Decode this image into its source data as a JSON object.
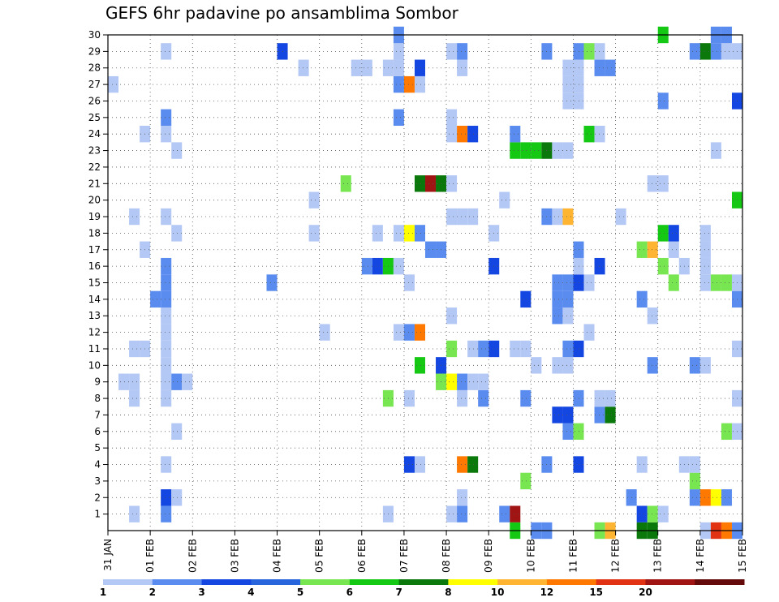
{
  "chart_data": {
    "type": "heatmap",
    "title": "GEFS 6hr padavine po ansamblima Sombor",
    "x_tick_labels": [
      "31 JAN",
      "01 FEB",
      "02 FEB",
      "03 FEB",
      "04 FEB",
      "05 FEB",
      "06 FEB",
      "07 FEB",
      "08 FEB",
      "09 FEB",
      "10 FEB",
      "11 FEB",
      "12 FEB",
      "13 FEB",
      "14 FEB",
      "15 FEB"
    ],
    "x_range_days": [
      0,
      15
    ],
    "y_tick_labels": [
      "1",
      "2",
      "3",
      "4",
      "5",
      "6",
      "7",
      "8",
      "9",
      "10",
      "11",
      "12",
      "13",
      "14",
      "15",
      "16",
      "17",
      "18",
      "19",
      "20",
      "21",
      "22",
      "23",
      "24",
      "25",
      "26",
      "27",
      "28",
      "29",
      "30"
    ],
    "y_range_members": [
      0,
      30
    ],
    "grid": "dotted",
    "color_scale": {
      "levels": [
        "1",
        "2",
        "3",
        "4",
        "5",
        "6",
        "7",
        "8",
        "10",
        "12",
        "15",
        "20"
      ],
      "colors": [
        "#b4c8f5",
        "#5a8cf0",
        "#1446e1",
        "#2864dc",
        "#78e650",
        "#14c814",
        "#0a780a",
        "#ffff00",
        "#ffb432",
        "#ff7800",
        "#e13214",
        "#a01414",
        "#640a0a"
      ]
    },
    "cells": [
      {
        "d": 0.125,
        "m": 27,
        "c": 1
      },
      {
        "d": 0.375,
        "m": 9,
        "c": 1
      },
      {
        "d": 0.625,
        "m": 1,
        "c": 1
      },
      {
        "d": 0.625,
        "m": 8,
        "c": 1
      },
      {
        "d": 0.625,
        "m": 9,
        "c": 1
      },
      {
        "d": 0.625,
        "m": 11,
        "c": 1
      },
      {
        "d": 0.625,
        "m": 19,
        "c": 1
      },
      {
        "d": 0.875,
        "m": 11,
        "c": 1
      },
      {
        "d": 0.875,
        "m": 17,
        "c": 1
      },
      {
        "d": 0.875,
        "m": 24,
        "c": 1
      },
      {
        "d": 1.125,
        "m": 14,
        "c": 2
      },
      {
        "d": 1.375,
        "m": 1,
        "c": 2
      },
      {
        "d": 1.375,
        "m": 2,
        "c": 3
      },
      {
        "d": 1.375,
        "m": 4,
        "c": 1
      },
      {
        "d": 1.375,
        "m": 8,
        "c": 1
      },
      {
        "d": 1.375,
        "m": 9,
        "c": 1
      },
      {
        "d": 1.375,
        "m": 10,
        "c": 1
      },
      {
        "d": 1.375,
        "m": 11,
        "c": 1
      },
      {
        "d": 1.375,
        "m": 12,
        "c": 1
      },
      {
        "d": 1.375,
        "m": 13,
        "c": 1
      },
      {
        "d": 1.375,
        "m": 14,
        "c": 2
      },
      {
        "d": 1.375,
        "m": 15,
        "c": 2
      },
      {
        "d": 1.375,
        "m": 16,
        "c": 2
      },
      {
        "d": 1.375,
        "m": 19,
        "c": 1
      },
      {
        "d": 1.375,
        "m": 24,
        "c": 1
      },
      {
        "d": 1.375,
        "m": 25,
        "c": 2
      },
      {
        "d": 1.375,
        "m": 29,
        "c": 1
      },
      {
        "d": 1.625,
        "m": 2,
        "c": 1
      },
      {
        "d": 1.625,
        "m": 6,
        "c": 1
      },
      {
        "d": 1.625,
        "m": 9,
        "c": 2
      },
      {
        "d": 1.625,
        "m": 18,
        "c": 1
      },
      {
        "d": 1.625,
        "m": 23,
        "c": 1
      },
      {
        "d": 1.875,
        "m": 9,
        "c": 1
      },
      {
        "d": 3.875,
        "m": 15,
        "c": 2
      },
      {
        "d": 4.125,
        "m": 29,
        "c": 3
      },
      {
        "d": 4.625,
        "m": 28,
        "c": 1
      },
      {
        "d": 4.875,
        "m": 18,
        "c": 1
      },
      {
        "d": 4.875,
        "m": 20,
        "c": 1
      },
      {
        "d": 5.125,
        "m": 12,
        "c": 1
      },
      {
        "d": 5.625,
        "m": 21,
        "c": 5
      },
      {
        "d": 5.875,
        "m": 28,
        "c": 1
      },
      {
        "d": 6.125,
        "m": 28,
        "c": 1
      },
      {
        "d": 6.125,
        "m": 16,
        "c": 2
      },
      {
        "d": 6.375,
        "m": 16,
        "c": 3
      },
      {
        "d": 6.375,
        "m": 18,
        "c": 1
      },
      {
        "d": 6.625,
        "m": 1,
        "c": 1
      },
      {
        "d": 6.625,
        "m": 8,
        "c": 5
      },
      {
        "d": 6.625,
        "m": 16,
        "c": 6
      },
      {
        "d": 6.625,
        "m": 28,
        "c": 1
      },
      {
        "d": 6.875,
        "m": 12,
        "c": 1
      },
      {
        "d": 6.875,
        "m": 16,
        "c": 1
      },
      {
        "d": 6.875,
        "m": 18,
        "c": 1
      },
      {
        "d": 6.875,
        "m": 25,
        "c": 2
      },
      {
        "d": 6.875,
        "m": 27,
        "c": 2
      },
      {
        "d": 6.875,
        "m": 28,
        "c": 1
      },
      {
        "d": 6.875,
        "m": 29,
        "c": 1
      },
      {
        "d": 6.875,
        "m": 30,
        "c": 2
      },
      {
        "d": 7.125,
        "m": 4,
        "c": 3
      },
      {
        "d": 7.125,
        "m": 8,
        "c": 1
      },
      {
        "d": 7.125,
        "m": 12,
        "c": 2
      },
      {
        "d": 7.125,
        "m": 15,
        "c": 1
      },
      {
        "d": 7.125,
        "m": 18,
        "c": 8
      },
      {
        "d": 7.125,
        "m": 27,
        "c": 10
      },
      {
        "d": 7.375,
        "m": 4,
        "c": 1
      },
      {
        "d": 7.375,
        "m": 10,
        "c": 6
      },
      {
        "d": 7.375,
        "m": 12,
        "c": 10
      },
      {
        "d": 7.375,
        "m": 18,
        "c": 2
      },
      {
        "d": 7.375,
        "m": 21,
        "c": 7
      },
      {
        "d": 7.375,
        "m": 27,
        "c": 1
      },
      {
        "d": 7.375,
        "m": 28,
        "c": 3
      },
      {
        "d": 7.625,
        "m": 17,
        "c": 2
      },
      {
        "d": 7.625,
        "m": 21,
        "c": 12
      },
      {
        "d": 7.875,
        "m": 9,
        "c": 5
      },
      {
        "d": 7.875,
        "m": 10,
        "c": 3
      },
      {
        "d": 7.875,
        "m": 17,
        "c": 2
      },
      {
        "d": 7.875,
        "m": 21,
        "c": 7
      },
      {
        "d": 8.125,
        "m": 1,
        "c": 1
      },
      {
        "d": 8.125,
        "m": 9,
        "c": 8
      },
      {
        "d": 8.125,
        "m": 11,
        "c": 5
      },
      {
        "d": 8.125,
        "m": 13,
        "c": 1
      },
      {
        "d": 8.125,
        "m": 19,
        "c": 1
      },
      {
        "d": 8.125,
        "m": 21,
        "c": 1
      },
      {
        "d": 8.125,
        "m": 24,
        "c": 1
      },
      {
        "d": 8.125,
        "m": 25,
        "c": 1
      },
      {
        "d": 8.125,
        "m": 29,
        "c": 1
      },
      {
        "d": 8.375,
        "m": 1,
        "c": 2
      },
      {
        "d": 8.375,
        "m": 2,
        "c": 1
      },
      {
        "d": 8.375,
        "m": 4,
        "c": 10
      },
      {
        "d": 8.375,
        "m": 8,
        "c": 1
      },
      {
        "d": 8.375,
        "m": 9,
        "c": 2
      },
      {
        "d": 8.375,
        "m": 19,
        "c": 1
      },
      {
        "d": 8.375,
        "m": 24,
        "c": 10
      },
      {
        "d": 8.375,
        "m": 28,
        "c": 1
      },
      {
        "d": 8.375,
        "m": 29,
        "c": 2
      },
      {
        "d": 8.625,
        "m": 4,
        "c": 7
      },
      {
        "d": 8.625,
        "m": 9,
        "c": 1
      },
      {
        "d": 8.625,
        "m": 11,
        "c": 1
      },
      {
        "d": 8.625,
        "m": 19,
        "c": 1
      },
      {
        "d": 8.625,
        "m": 24,
        "c": 3
      },
      {
        "d": 8.875,
        "m": 8,
        "c": 2
      },
      {
        "d": 8.875,
        "m": 9,
        "c": 1
      },
      {
        "d": 8.875,
        "m": 11,
        "c": 2
      },
      {
        "d": 9.125,
        "m": 11,
        "c": 3
      },
      {
        "d": 9.125,
        "m": 16,
        "c": 3
      },
      {
        "d": 9.125,
        "m": 18,
        "c": 1
      },
      {
        "d": 9.375,
        "m": 1,
        "c": 2
      },
      {
        "d": 9.375,
        "m": 20,
        "c": 1
      },
      {
        "d": 9.625,
        "m": 0,
        "c": 6
      },
      {
        "d": 9.625,
        "m": 1,
        "c": 12
      },
      {
        "d": 9.625,
        "m": 11,
        "c": 1
      },
      {
        "d": 9.625,
        "m": 23,
        "c": 6
      },
      {
        "d": 9.625,
        "m": 24,
        "c": 2
      },
      {
        "d": 9.875,
        "m": 3,
        "c": 5
      },
      {
        "d": 9.875,
        "m": 8,
        "c": 2
      },
      {
        "d": 9.875,
        "m": 11,
        "c": 1
      },
      {
        "d": 9.875,
        "m": 14,
        "c": 3
      },
      {
        "d": 9.875,
        "m": 23,
        "c": 6
      },
      {
        "d": 10.125,
        "m": 0,
        "c": 2
      },
      {
        "d": 10.125,
        "m": 10,
        "c": 1
      },
      {
        "d": 10.125,
        "m": 23,
        "c": 6
      },
      {
        "d": 10.375,
        "m": 0,
        "c": 2
      },
      {
        "d": 10.375,
        "m": 4,
        "c": 2
      },
      {
        "d": 10.375,
        "m": 19,
        "c": 2
      },
      {
        "d": 10.375,
        "m": 23,
        "c": 7
      },
      {
        "d": 10.375,
        "m": 29,
        "c": 2
      },
      {
        "d": 10.625,
        "m": 7,
        "c": 3
      },
      {
        "d": 10.625,
        "m": 10,
        "c": 1
      },
      {
        "d": 10.625,
        "m": 13,
        "c": 2
      },
      {
        "d": 10.625,
        "m": 14,
        "c": 2
      },
      {
        "d": 10.625,
        "m": 15,
        "c": 2
      },
      {
        "d": 10.625,
        "m": 19,
        "c": 1
      },
      {
        "d": 10.625,
        "m": 23,
        "c": 1
      },
      {
        "d": 10.875,
        "m": 6,
        "c": 2
      },
      {
        "d": 10.875,
        "m": 7,
        "c": 3
      },
      {
        "d": 10.875,
        "m": 10,
        "c": 1
      },
      {
        "d": 10.875,
        "m": 11,
        "c": 2
      },
      {
        "d": 10.875,
        "m": 13,
        "c": 1
      },
      {
        "d": 10.875,
        "m": 14,
        "c": 2
      },
      {
        "d": 10.875,
        "m": 15,
        "c": 2
      },
      {
        "d": 10.875,
        "m": 19,
        "c": 9
      },
      {
        "d": 10.875,
        "m": 23,
        "c": 1
      },
      {
        "d": 10.875,
        "m": 26,
        "c": 1
      },
      {
        "d": 10.875,
        "m": 27,
        "c": 1
      },
      {
        "d": 10.875,
        "m": 28,
        "c": 1
      },
      {
        "d": 11.125,
        "m": 4,
        "c": 3
      },
      {
        "d": 11.125,
        "m": 6,
        "c": 5
      },
      {
        "d": 11.125,
        "m": 8,
        "c": 2
      },
      {
        "d": 11.125,
        "m": 11,
        "c": 3
      },
      {
        "d": 11.125,
        "m": 15,
        "c": 3
      },
      {
        "d": 11.125,
        "m": 16,
        "c": 1
      },
      {
        "d": 11.125,
        "m": 17,
        "c": 2
      },
      {
        "d": 11.125,
        "m": 26,
        "c": 1
      },
      {
        "d": 11.125,
        "m": 27,
        "c": 1
      },
      {
        "d": 11.125,
        "m": 28,
        "c": 1
      },
      {
        "d": 11.125,
        "m": 29,
        "c": 2
      },
      {
        "d": 11.375,
        "m": 12,
        "c": 1
      },
      {
        "d": 11.375,
        "m": 15,
        "c": 1
      },
      {
        "d": 11.375,
        "m": 24,
        "c": 6
      },
      {
        "d": 11.375,
        "m": 29,
        "c": 5
      },
      {
        "d": 11.625,
        "m": 0,
        "c": 5
      },
      {
        "d": 11.625,
        "m": 7,
        "c": 2
      },
      {
        "d": 11.625,
        "m": 8,
        "c": 1
      },
      {
        "d": 11.625,
        "m": 16,
        "c": 3
      },
      {
        "d": 11.625,
        "m": 24,
        "c": 1
      },
      {
        "d": 11.625,
        "m": 28,
        "c": 2
      },
      {
        "d": 11.625,
        "m": 29,
        "c": 1
      },
      {
        "d": 11.875,
        "m": 0,
        "c": 9
      },
      {
        "d": 11.875,
        "m": 7,
        "c": 7
      },
      {
        "d": 11.875,
        "m": 8,
        "c": 1
      },
      {
        "d": 11.875,
        "m": 28,
        "c": 2
      },
      {
        "d": 12.125,
        "m": 19,
        "c": 1
      },
      {
        "d": 12.375,
        "m": 2,
        "c": 2
      },
      {
        "d": 12.625,
        "m": 0,
        "c": 7
      },
      {
        "d": 12.625,
        "m": 1,
        "c": 3
      },
      {
        "d": 12.625,
        "m": 4,
        "c": 1
      },
      {
        "d": 12.625,
        "m": 14,
        "c": 2
      },
      {
        "d": 12.625,
        "m": 17,
        "c": 5
      },
      {
        "d": 12.875,
        "m": 0,
        "c": 7
      },
      {
        "d": 12.875,
        "m": 1,
        "c": 5
      },
      {
        "d": 12.875,
        "m": 10,
        "c": 2
      },
      {
        "d": 12.875,
        "m": 13,
        "c": 1
      },
      {
        "d": 12.875,
        "m": 17,
        "c": 9
      },
      {
        "d": 12.875,
        "m": 21,
        "c": 1
      },
      {
        "d": 13.125,
        "m": 1,
        "c": 1
      },
      {
        "d": 13.125,
        "m": 16,
        "c": 5
      },
      {
        "d": 13.125,
        "m": 18,
        "c": 6
      },
      {
        "d": 13.125,
        "m": 21,
        "c": 1
      },
      {
        "d": 13.125,
        "m": 26,
        "c": 2
      },
      {
        "d": 13.125,
        "m": 30,
        "c": 6
      },
      {
        "d": 13.375,
        "m": 15,
        "c": 5
      },
      {
        "d": 13.375,
        "m": 17,
        "c": 1
      },
      {
        "d": 13.375,
        "m": 18,
        "c": 3
      },
      {
        "d": 13.625,
        "m": 4,
        "c": 1
      },
      {
        "d": 13.625,
        "m": 16,
        "c": 1
      },
      {
        "d": 13.875,
        "m": 2,
        "c": 2
      },
      {
        "d": 13.875,
        "m": 3,
        "c": 5
      },
      {
        "d": 13.875,
        "m": 4,
        "c": 1
      },
      {
        "d": 13.875,
        "m": 10,
        "c": 2
      },
      {
        "d": 13.875,
        "m": 29,
        "c": 2
      },
      {
        "d": 14.125,
        "m": 0,
        "c": 1
      },
      {
        "d": 14.125,
        "m": 2,
        "c": 10
      },
      {
        "d": 14.125,
        "m": 10,
        "c": 1
      },
      {
        "d": 14.125,
        "m": 15,
        "c": 1
      },
      {
        "d": 14.125,
        "m": 16,
        "c": 1
      },
      {
        "d": 14.125,
        "m": 17,
        "c": 1
      },
      {
        "d": 14.125,
        "m": 18,
        "c": 1
      },
      {
        "d": 14.125,
        "m": 29,
        "c": 7
      },
      {
        "d": 14.375,
        "m": 0,
        "c": 11
      },
      {
        "d": 14.375,
        "m": 2,
        "c": 8
      },
      {
        "d": 14.375,
        "m": 15,
        "c": 5
      },
      {
        "d": 14.375,
        "m": 23,
        "c": 1
      },
      {
        "d": 14.375,
        "m": 29,
        "c": 2
      },
      {
        "d": 14.375,
        "m": 30,
        "c": 2
      },
      {
        "d": 14.625,
        "m": 0,
        "c": 10
      },
      {
        "d": 14.625,
        "m": 2,
        "c": 2
      },
      {
        "d": 14.625,
        "m": 6,
        "c": 5
      },
      {
        "d": 14.625,
        "m": 15,
        "c": 5
      },
      {
        "d": 14.625,
        "m": 29,
        "c": 1
      },
      {
        "d": 14.625,
        "m": 30,
        "c": 2
      },
      {
        "d": 14.875,
        "m": 0,
        "c": 2
      },
      {
        "d": 14.875,
        "m": 6,
        "c": 1
      },
      {
        "d": 14.875,
        "m": 8,
        "c": 1
      },
      {
        "d": 14.875,
        "m": 11,
        "c": 1
      },
      {
        "d": 14.875,
        "m": 14,
        "c": 2
      },
      {
        "d": 14.875,
        "m": 15,
        "c": 1
      },
      {
        "d": 14.875,
        "m": 20,
        "c": 6
      },
      {
        "d": 14.875,
        "m": 26,
        "c": 3
      },
      {
        "d": 14.875,
        "m": 29,
        "c": 1
      }
    ]
  }
}
